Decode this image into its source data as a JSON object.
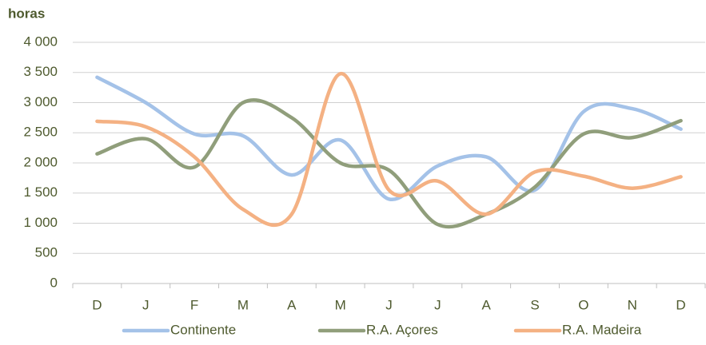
{
  "chart_data": {
    "type": "line",
    "title": "horas",
    "categories": [
      "D",
      "J",
      "F",
      "M",
      "A",
      "M",
      "J",
      "J",
      "A",
      "S",
      "O",
      "N",
      "D"
    ],
    "series": [
      {
        "name": "Continente",
        "color": "#a4c2e8",
        "values": [
          3420,
          3000,
          2480,
          2450,
          1800,
          2380,
          1400,
          1950,
          2100,
          1550,
          2850,
          2900,
          2560
        ]
      },
      {
        "name": "R.A. Açores",
        "color": "#909e7b",
        "values": [
          2150,
          2400,
          1930,
          3000,
          2750,
          2000,
          1880,
          980,
          1150,
          1600,
          2480,
          2420,
          2700
        ]
      },
      {
        "name": "R.A. Madeira",
        "color": "#f4b183",
        "values": [
          2690,
          2600,
          2100,
          1230,
          1150,
          3480,
          1550,
          1700,
          1150,
          1850,
          1780,
          1580,
          1770
        ]
      }
    ],
    "ylim": [
      0,
      4000
    ],
    "yticks": [
      0,
      500,
      {
        "value": 1000,
        "label": "1 000"
      },
      {
        "value": 1500,
        "label": "1 500"
      },
      {
        "value": 2000,
        "label": "2 000"
      },
      {
        "value": 2500,
        "label": "2 500"
      },
      {
        "value": 3000,
        "label": "3 000"
      },
      {
        "value": 3500,
        "label": "3 500"
      },
      {
        "value": 4000,
        "label": "4 000"
      }
    ],
    "grid": true,
    "legend": "bottom"
  }
}
